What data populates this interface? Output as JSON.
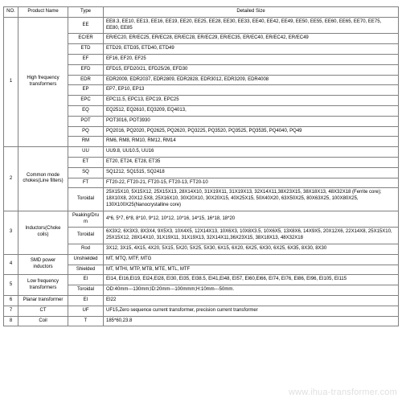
{
  "headers": {
    "no": "NO.",
    "name": "Product Name",
    "type": "Type",
    "detail": "Detailed Size"
  },
  "watermark": "www.ihua-transformer.com",
  "groups": [
    {
      "no": "1",
      "name": "High frequency transformers",
      "rows": [
        {
          "type": "EE",
          "detail": "EE8.3, EE10, EE13, EE16, EE19, EE20, EE25, EE28, EE30, EE33, EE40, EE42, EE49, EE50, EE55, EE60, EE65, EE70, EE75, EE80, EE85"
        },
        {
          "type": "EC/ER",
          "detail": "ER/EC20, ER/EC25, ER/EC28, ER/EC28, ER/EC29, ER/EC35, ER/EC40, ER/EC42, ER/EC49"
        },
        {
          "type": "ETD",
          "detail": "ETD29, ETD35, ETD40, ETD49"
        },
        {
          "type": "EF",
          "detail": "EF16, EF20, EF25"
        },
        {
          "type": "EFD",
          "detail": "EFD15, EFD20/21, EFD25/26, EFD30"
        },
        {
          "type": "EDR",
          "detail": "EDR2009, EDR2037, EDR2809, EDR2828, EDR3012, EDR3209, EDR4008"
        },
        {
          "type": "EP",
          "detail": "EP7, EP10, EP13"
        },
        {
          "type": "EPC",
          "detail": "EPC11.5, EPC13, EPC19, EPC25"
        },
        {
          "type": "EQ",
          "detail": "EQ2512, EQ2610, EQ3209, EQ4013,"
        },
        {
          "type": "POT",
          "detail": "POT3016, POT3930"
        },
        {
          "type": "PQ",
          "detail": "PQ2016, PQ2020, PQ2625, PQ2620, PQ3225, PQ3520, PQ3525, PQ3535, PQ4040, PQ49"
        },
        {
          "type": "RM",
          "detail": "RM6, RM8, RM10, RM12, RM14"
        }
      ]
    },
    {
      "no": "2",
      "name": "Common mode chokes(Line filters)",
      "rows": [
        {
          "type": "UU",
          "detail": "UU9.8, UU10.5, UU16"
        },
        {
          "type": "ET",
          "detail": "ET20, ET24, ET28, ET35"
        },
        {
          "type": "SQ",
          "detail": "SQ1212, SQ1515, SQ2418"
        },
        {
          "type": "FT",
          "detail": "FT20-22, FT20-21, FT20-15, FT20-13, FT20-10"
        },
        {
          "type": "Toroidal",
          "detail": "25X15X10, 5X15X12, 25X15X13, 28X14X10, 31X19X11, 31X19X13, 32X14X11,38X23X15, 38X18X13, 48X32X18 (Ferrite core); 18X10X8, 20X12.5X8, 25X16X10, 30X20X10, 30X20X15, 40X25X15, 50X40X20, 63X50X25, 80X63X25, 100X80X25, 130X100X25(Nanocrystalline core)"
        }
      ]
    },
    {
      "no": "3",
      "name": "Inductors(Choke coils)",
      "rows": [
        {
          "type": "Peaking/Drum",
          "detail": "4*6, 5*7, 6*8, 8*10, 9*12, 10*12, 10*16, 14*15, 16*18, 18*20"
        },
        {
          "type": "Toroidal",
          "detail": "6X3X2, 6X3X3, 8X3X4, 9X5X3, 10X4X5, 12X14X13, 10X6X3, 10X8X3.5, 10X6X5, 13X8X6, 14X9X5, 20X12X6, 22X14X8, 25X15X10, 25X15X12, 28X14X10, 31X19X11, 31X19X13, 32X14X11,36X23X15, 38X18X13, 48X32X18"
        },
        {
          "type": "Rod",
          "detail": "3X12, 3X15, 4X15, 4X20, 5X15, 5X20, 5X25, 5X30, 6X15, 6X20, 6X25, 6X30, 6X25, 6X35, 8X30, 8X30"
        }
      ]
    },
    {
      "no": "4",
      "name": "SMD power inductors",
      "rows": [
        {
          "type": "Unshielded",
          "detail": "MT, MTQ, MTF, MTG"
        },
        {
          "type": "Shielded",
          "detail": "MT, MTHI, MTP, MTB, MTE, MTL, MTF"
        }
      ]
    },
    {
      "no": "5",
      "name": "Low frequency transformers",
      "rows": [
        {
          "type": "EI",
          "detail": "EI14, EI16,EI19, EI24,EI28, EI30, EI35, EI38.5, EI41,EI48, EI57, EI60,EI66, EI74, EI76, EI86, EI96, EI105, EI115"
        },
        {
          "type": "Toroidal",
          "detail": "OD:40mm---130mm;ID:20mm---100mmm;H:10mm---50mm."
        }
      ]
    },
    {
      "no": "6",
      "name": "Planar transformer",
      "rows": [
        {
          "type": "EI",
          "detail": "EI22"
        }
      ]
    },
    {
      "no": "7",
      "name": "CT",
      "rows": [
        {
          "type": "UF",
          "detail": "UF15,Zero sequence current transformer, precision current transformer"
        }
      ]
    },
    {
      "no": "8",
      "name": "Coil",
      "rows": [
        {
          "type": "T",
          "detail": "185*60,23.8"
        }
      ]
    }
  ]
}
